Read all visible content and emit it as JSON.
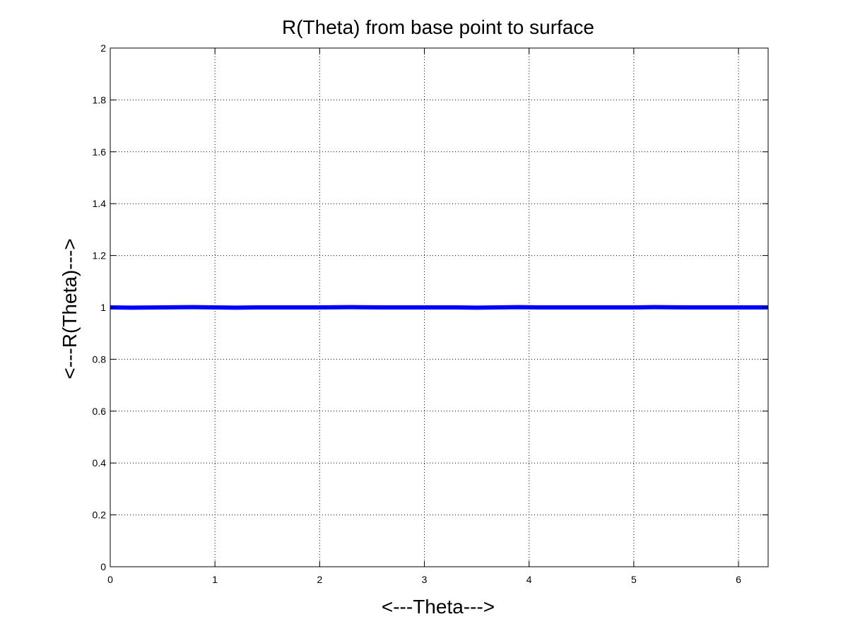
{
  "chart_data": {
    "type": "line",
    "title": "R(Theta) from base point to surface",
    "xlabel": "<---Theta--->",
    "ylabel": "<---R(Theta)--->",
    "xlim": [
      0,
      6.2832
    ],
    "ylim": [
      0,
      2
    ],
    "xticks": [
      0,
      1,
      2,
      3,
      4,
      5,
      6
    ],
    "yticks": [
      0,
      0.2,
      0.4,
      0.6,
      0.8,
      1,
      1.2,
      1.4,
      1.6,
      1.8,
      2
    ],
    "xtick_labels": [
      "0",
      "1",
      "2",
      "3",
      "4",
      "5",
      "6"
    ],
    "ytick_labels": [
      "0",
      "0.2",
      "0.4",
      "0.6",
      "0.8",
      "1",
      "1.2",
      "1.4",
      "1.6",
      "1.8",
      "2"
    ],
    "grid": true,
    "grid_style": "dotted",
    "series": [
      {
        "color": "#0000ff",
        "x": [
          0,
          0.2,
          0.5,
          0.8,
          1.0,
          1.2,
          1.4,
          1.6,
          2.0,
          2.3,
          2.6,
          3.0,
          3.3,
          3.5,
          3.7,
          3.9,
          4.1,
          4.3,
          4.6,
          5.0,
          5.2,
          5.5,
          5.8,
          6.0,
          6.2832
        ],
        "y": [
          1.0,
          0.999,
          1.0,
          1.001,
          1.0,
          0.999,
          1.0,
          1.0,
          1.0,
          1.001,
          1.0,
          1.0,
          1.0,
          0.999,
          1.0,
          1.001,
          1.0,
          1.0,
          1.0,
          1.0,
          1.001,
          1.0,
          1.0,
          1.0,
          1.0
        ]
      }
    ]
  }
}
